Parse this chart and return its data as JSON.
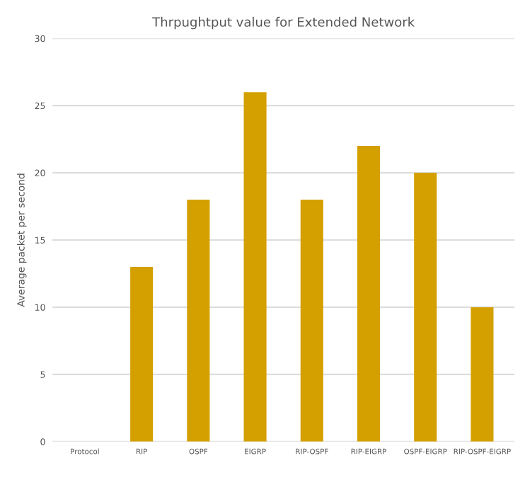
{
  "chart_data": {
    "type": "bar",
    "title": "Thrpughtput value for Extended Network",
    "ylabel": "Average packet per second",
    "categories": [
      "Protocol",
      "RIP",
      "OSPF",
      "EIGRP",
      "RIP-OSPF",
      "RIP-EIGRP",
      "OSPF-EIGRP",
      "RIP-OSPF-EIGRP"
    ],
    "values": [
      0,
      13,
      18,
      26,
      18,
      22,
      20,
      10
    ],
    "color": "#d4a000",
    "ylim": [
      0,
      30
    ],
    "yticks": [
      0,
      5,
      10,
      15,
      20,
      25,
      30
    ],
    "grid": "y"
  }
}
